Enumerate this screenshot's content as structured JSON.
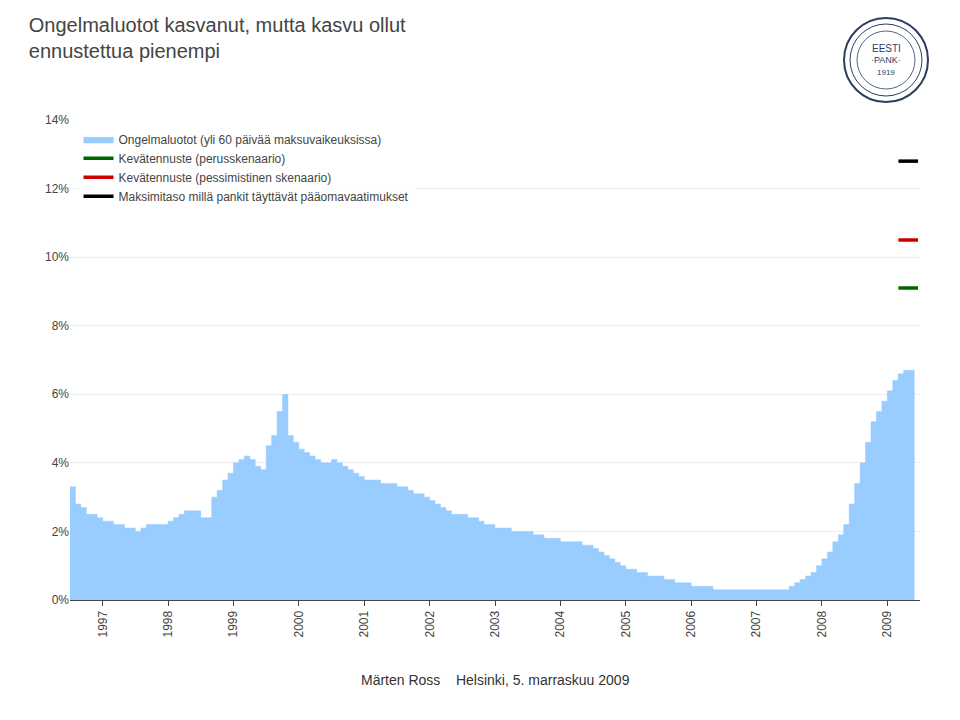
{
  "chart_data": {
    "type": "area",
    "title": "Ongelmaluotot kasvanut, mutta kasvu ollut\nennustettua pienempi",
    "annotations": [
      "Märten Ross    Helsinki, 5. marraskuu 2009",
      "EESTI",
      "·PANK·",
      "1919"
    ],
    "xlim": [
      1997,
      2010
    ],
    "xticks": [
      {
        "value": 1997.5,
        "label": "1997"
      },
      {
        "value": 1998.5,
        "label": "1998"
      },
      {
        "value": 1999.5,
        "label": "1999"
      },
      {
        "value": 2000.5,
        "label": "2000"
      },
      {
        "value": 2001.5,
        "label": "2001"
      },
      {
        "value": 2002.5,
        "label": "2002"
      },
      {
        "value": 2003.5,
        "label": "2003"
      },
      {
        "value": 2004.5,
        "label": "2004"
      },
      {
        "value": 2005.5,
        "label": "2005"
      },
      {
        "value": 2006.5,
        "label": "2006"
      },
      {
        "value": 2007.5,
        "label": "2007"
      },
      {
        "value": 2008.5,
        "label": "2008"
      },
      {
        "value": 2009.5,
        "label": "2009"
      }
    ],
    "ylim": [
      0.0,
      0.14
    ],
    "yticks": [
      {
        "value": 0.0,
        "label": "0%"
      },
      {
        "value": 0.02,
        "label": "2%"
      },
      {
        "value": 0.04,
        "label": "4%"
      },
      {
        "value": 0.06,
        "label": "6%"
      },
      {
        "value": 0.08,
        "label": "8%"
      },
      {
        "value": 0.1,
        "label": "10%"
      },
      {
        "value": 0.12,
        "label": "12%"
      },
      {
        "value": 0.14,
        "label": "14%"
      }
    ],
    "grid": true,
    "legend": "upper left",
    "series": [
      {
        "name": "Ongelmaluotot (yli 60 päivää maksuvaikeuksissa)",
        "type": "area",
        "line_style": "step",
        "color": "#99CCFF",
        "x": [
          1997,
          1997.0833333333333,
          1997.1666666666667,
          1997.25,
          1997.3333333333333,
          1997.4166666666667,
          1997.5,
          1997.5833333333333,
          1997.6666666666667,
          1997.75,
          1997.8333333333333,
          1997.9166666666667,
          1998,
          1998.0833333333333,
          1998.1666666666667,
          1998.25,
          1998.3333333333333,
          1998.4166666666667,
          1998.5,
          1998.5833333333333,
          1998.6666666666667,
          1998.75,
          1998.8333333333333,
          1998.9166666666667,
          1999,
          1999.0833333333333,
          1999.1666666666667,
          1999.25,
          1999.3333333333333,
          1999.4166666666667,
          1999.5,
          1999.5833333333333,
          1999.6666666666667,
          1999.75,
          1999.8333333333333,
          1999.9166666666667,
          2000,
          2000.0833333333333,
          2000.1666666666667,
          2000.25,
          2000.3333333333333,
          2000.4166666666667,
          2000.5,
          2000.5833333333333,
          2000.6666666666667,
          2000.75,
          2000.8333333333333,
          2000.9166666666667,
          2001,
          2001.0833333333333,
          2001.1666666666667,
          2001.25,
          2001.3333333333333,
          2001.4166666666667,
          2001.5,
          2001.5833333333333,
          2001.6666666666667,
          2001.75,
          2001.8333333333333,
          2001.9166666666667,
          2002,
          2002.0833333333333,
          2002.1666666666667,
          2002.25,
          2002.3333333333333,
          2002.4166666666667,
          2002.5,
          2002.5833333333333,
          2002.6666666666667,
          2002.75,
          2002.8333333333333,
          2002.9166666666667,
          2003,
          2003.0833333333333,
          2003.1666666666667,
          2003.25,
          2003.3333333333333,
          2003.4166666666667,
          2003.5,
          2003.5833333333333,
          2003.6666666666667,
          2003.75,
          2003.8333333333333,
          2003.9166666666667,
          2004,
          2004.0833333333333,
          2004.1666666666667,
          2004.25,
          2004.3333333333333,
          2004.4166666666667,
          2004.5,
          2004.5833333333333,
          2004.6666666666667,
          2004.75,
          2004.8333333333333,
          2004.9166666666667,
          2005,
          2005.0833333333333,
          2005.1666666666667,
          2005.25,
          2005.3333333333333,
          2005.4166666666667,
          2005.5,
          2005.5833333333333,
          2005.6666666666667,
          2005.75,
          2005.8333333333333,
          2005.9166666666667,
          2006,
          2006.0833333333333,
          2006.1666666666667,
          2006.25,
          2006.3333333333333,
          2006.4166666666667,
          2006.5,
          2006.5833333333333,
          2006.6666666666667,
          2006.75,
          2006.8333333333333,
          2006.9166666666667,
          2007,
          2007.0833333333333,
          2007.1666666666667,
          2007.25,
          2007.3333333333333,
          2007.4166666666667,
          2007.5,
          2007.5833333333333,
          2007.6666666666667,
          2007.75,
          2007.8333333333333,
          2007.9166666666667,
          2008,
          2008.0833333333333,
          2008.1666666666667,
          2008.25,
          2008.3333333333333,
          2008.4166666666667,
          2008.5,
          2008.5833333333333,
          2008.6666666666667,
          2008.75,
          2008.8333333333333,
          2008.9166666666667,
          2009,
          2009.0833333333333,
          2009.1666666666667,
          2009.25,
          2009.3333333333333,
          2009.4166666666667,
          2009.5,
          2009.5833333333333,
          2009.6666666666667,
          2009.75,
          2009.8333333333333,
          2009.9166666666667
        ],
        "values": [
          0.033,
          0.028,
          0.027,
          0.025,
          0.025,
          0.024,
          0.023,
          0.023,
          0.022,
          0.022,
          0.021,
          0.021,
          0.02,
          0.021,
          0.022,
          0.022,
          0.022,
          0.022,
          0.023,
          0.024,
          0.025,
          0.026,
          0.026,
          0.026,
          0.024,
          0.024,
          0.03,
          0.032,
          0.035,
          0.037,
          0.04,
          0.041,
          0.042,
          0.041,
          0.039,
          0.038,
          0.045,
          0.048,
          0.055,
          0.06,
          0.048,
          0.046,
          0.044,
          0.043,
          0.042,
          0.041,
          0.04,
          0.04,
          0.041,
          0.04,
          0.039,
          0.038,
          0.037,
          0.036,
          0.035,
          0.035,
          0.035,
          0.034,
          0.034,
          0.034,
          0.033,
          0.033,
          0.032,
          0.031,
          0.031,
          0.03,
          0.029,
          0.028,
          0.027,
          0.026,
          0.025,
          0.025,
          0.025,
          0.024,
          0.024,
          0.023,
          0.022,
          0.022,
          0.021,
          0.021,
          0.021,
          0.02,
          0.02,
          0.02,
          0.02,
          0.019,
          0.019,
          0.018,
          0.018,
          0.018,
          0.017,
          0.017,
          0.017,
          0.017,
          0.016,
          0.016,
          0.015,
          0.014,
          0.013,
          0.012,
          0.011,
          0.01,
          0.009,
          0.009,
          0.008,
          0.008,
          0.007,
          0.007,
          0.007,
          0.006,
          0.006,
          0.005,
          0.005,
          0.005,
          0.004,
          0.004,
          0.004,
          0.004,
          0.003,
          0.003,
          0.003,
          0.003,
          0.003,
          0.003,
          0.003,
          0.003,
          0.003,
          0.003,
          0.003,
          0.003,
          0.003,
          0.003,
          0.004,
          0.005,
          0.006,
          0.007,
          0.008,
          0.01,
          0.012,
          0.014,
          0.017,
          0.019,
          0.022,
          0.028,
          0.034,
          0.04,
          0.046,
          0.052,
          0.055,
          0.058,
          0.061,
          0.064,
          0.066,
          0.067,
          0.067,
          0.067
        ]
      },
      {
        "name": "Kevätennuste (perusskenaario)",
        "type": "line",
        "color": "#006600",
        "x": [
          2009.67,
          2009.97
        ],
        "values": [
          0.091,
          0.091
        ]
      },
      {
        "name": "Kevätennuste (pessimistinen skenaario)",
        "type": "line",
        "color": "#CC0000",
        "x": [
          2009.67,
          2009.97
        ],
        "values": [
          0.105,
          0.105
        ]
      },
      {
        "name": "Maksimitaso millä pankit täyttävät pääomavaatimukset",
        "type": "line",
        "color": "#000000",
        "x": [
          2009.67,
          2009.97
        ],
        "values": [
          0.128,
          0.128
        ]
      }
    ]
  }
}
